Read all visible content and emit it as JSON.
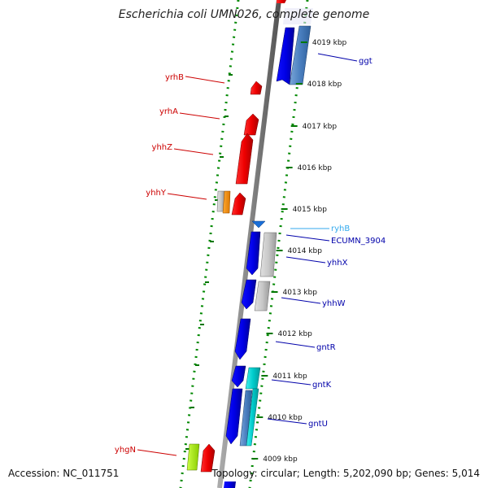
{
  "title": "Escherichia coli UMN026, complete genome",
  "footer": {
    "accession": "Accession: NC_011751",
    "summary": "Topology: circular; Length: 5,202,090 bp; Genes: 5,014"
  },
  "ticks": [
    {
      "label": "4019 kbp"
    },
    {
      "label": "4018 kbp"
    },
    {
      "label": "4017 kbp"
    },
    {
      "label": "4016 kbp"
    },
    {
      "label": "4015 kbp"
    },
    {
      "label": "4014 kbp"
    },
    {
      "label": "4013 kbp"
    },
    {
      "label": "4012 kbp"
    },
    {
      "label": "4011 kbp"
    },
    {
      "label": "4010 kbp"
    },
    {
      "label": "4009 kbp"
    }
  ],
  "genes_left": [
    {
      "label": "yrhB",
      "color": "#cc0000"
    },
    {
      "label": "yrhA",
      "color": "#cc0000"
    },
    {
      "label": "yhhZ",
      "color": "#cc0000"
    },
    {
      "label": "yhhY",
      "color": "#cc0000"
    },
    {
      "label": "yhgN",
      "color": "#cc0000"
    }
  ],
  "genes_right": [
    {
      "label": "ggt",
      "color": "#0000aa"
    },
    {
      "label": "ryhB",
      "color": "#33aaee"
    },
    {
      "label": "ECUMN_3904",
      "color": "#0000aa"
    },
    {
      "label": "yhhX",
      "color": "#0000aa"
    },
    {
      "label": "yhhW",
      "color": "#0000aa"
    },
    {
      "label": "gntR",
      "color": "#0000aa"
    },
    {
      "label": "gntK",
      "color": "#0000aa"
    },
    {
      "label": "gntU",
      "color": "#0000aa"
    }
  ]
}
